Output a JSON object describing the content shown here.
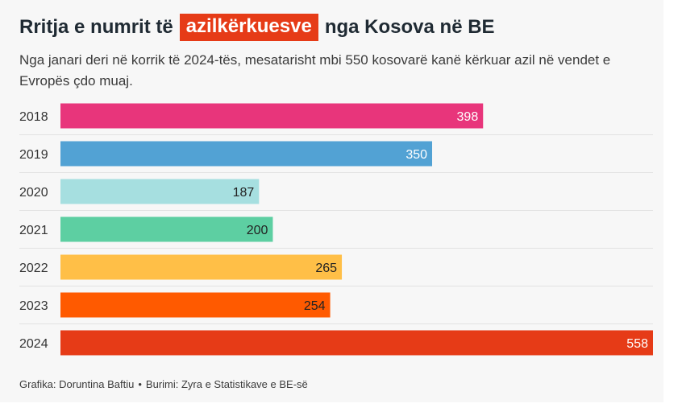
{
  "title": {
    "before": "Rritja e numrit të",
    "highlight": "azilkërkuesve",
    "after": "nga Kosova në BE"
  },
  "subtitle": "Nga janari deri në korrik të 2024-tës, mesatarisht mbi 550 kosovarë kanë kërkuar azil në vendet e Evropës çdo muaj.",
  "footer": {
    "credit": "Grafika: Doruntina Baftiu",
    "separator": "•",
    "source": "Burimi: Zyra e Statistikave e BE-së"
  },
  "chart_data": {
    "type": "bar",
    "orientation": "horizontal",
    "categories": [
      "2018",
      "2019",
      "2020",
      "2021",
      "2022",
      "2023",
      "2024"
    ],
    "values": [
      398,
      350,
      187,
      200,
      265,
      254,
      558
    ],
    "colors": [
      "#e8357b",
      "#52a2d4",
      "#a6dfe0",
      "#5dcfa2",
      "#ffbf47",
      "#ff5a00",
      "#e63b17"
    ],
    "label_colors": [
      "#ffffff",
      "#ffffff",
      "#222222",
      "#222222",
      "#222222",
      "#222222",
      "#ffffff"
    ],
    "xlim": [
      0,
      558
    ],
    "grid": false
  }
}
